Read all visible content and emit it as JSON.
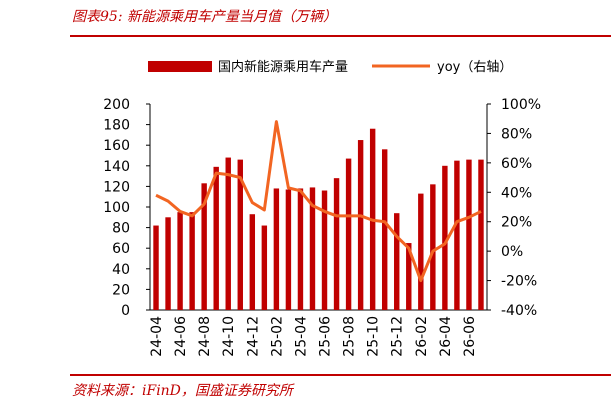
{
  "figure_title": "图表95: 新能源乘用车产量当月值（万辆）",
  "source_note": "资料来源：iFinD，国盛证券研究所",
  "colors": {
    "bar": "#c00000",
    "line": "#f26522",
    "accent": "#c00000"
  },
  "chart_data": {
    "type": "bar",
    "categories": [
      "24-04",
      "24-05",
      "24-06",
      "24-07",
      "24-08",
      "24-09",
      "24-10",
      "24-11",
      "24-12",
      "25-01",
      "25-02",
      "25-03",
      "25-04",
      "25-05",
      "25-06",
      "25-07",
      "25-08",
      "25-09",
      "25-10",
      "25-11",
      "25-12",
      "26-01",
      "26-02",
      "26-03",
      "26-04",
      "26-05",
      "26-06",
      "26-07"
    ],
    "tick_labels": [
      "24-04",
      "24-06",
      "24-08",
      "24-10",
      "24-12",
      "25-02",
      "25-04",
      "25-06",
      "25-08",
      "25-10",
      "25-12",
      "26-02",
      "26-04",
      "26-06"
    ],
    "series": [
      {
        "name": "国内新能源乘用车产量",
        "type": "bar",
        "axis": "left",
        "values": [
          82,
          90,
          95,
          95,
          123,
          139,
          148,
          146,
          93,
          82,
          118,
          117,
          118,
          119,
          116,
          128,
          147,
          165,
          176,
          156,
          94,
          65,
          113,
          122,
          140,
          145,
          146,
          146
        ]
      },
      {
        "name": "yoy（右轴）",
        "type": "line",
        "axis": "right",
        "values": [
          0.38,
          0.34,
          0.27,
          0.24,
          0.32,
          0.53,
          0.52,
          0.5,
          0.33,
          0.28,
          0.88,
          0.43,
          0.41,
          0.31,
          0.27,
          0.24,
          0.24,
          0.24,
          0.21,
          0.2,
          0.1,
          0.02,
          -0.2,
          0.0,
          0.05,
          0.2,
          0.23,
          0.27
        ]
      }
    ],
    "left_axis": {
      "min": 0,
      "max": 200,
      "ticks": [
        "0",
        "20",
        "40",
        "60",
        "80",
        "100",
        "120",
        "140",
        "160",
        "180",
        "200"
      ]
    },
    "right_axis": {
      "min": -0.4,
      "max": 1.0,
      "ticks": [
        "-40%",
        "-20%",
        "0%",
        "20%",
        "40%",
        "60%",
        "80%",
        "100%"
      ]
    },
    "legend_position": "top"
  }
}
